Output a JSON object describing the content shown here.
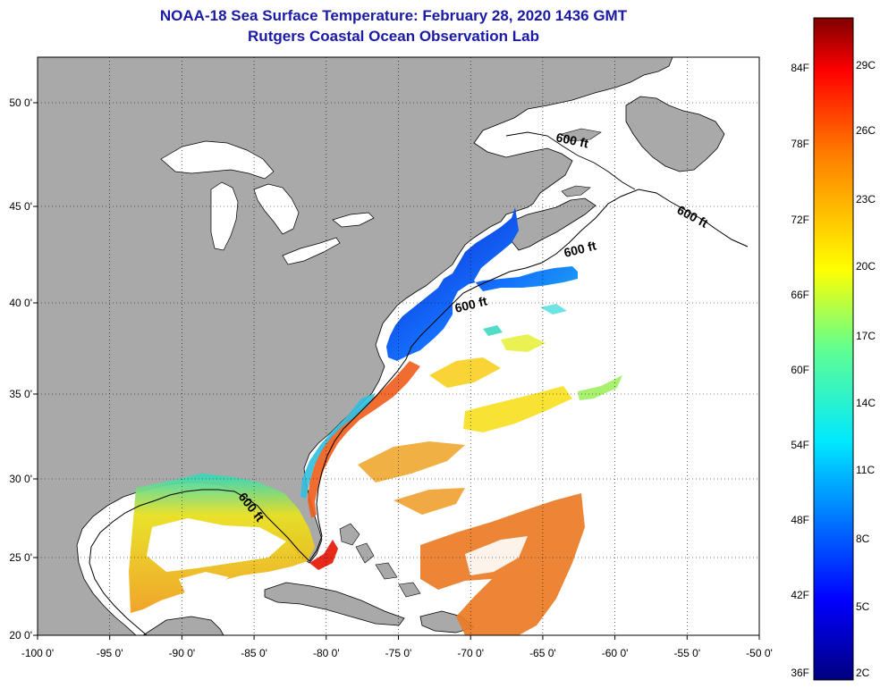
{
  "title": {
    "line1": "NOAA-18 Sea Surface Temperature:  February 28, 2020 1436 GMT",
    "line2": "Rutgers Coastal Ocean Observation Lab"
  },
  "axes": {
    "lon_labels": [
      "-100 0'",
      "-95 0'",
      "-90 0'",
      "-85 0'",
      "-80 0'",
      "-75 0'",
      "-70 0'",
      "-65 0'",
      "-60 0'",
      "-55 0'",
      "-50 0'"
    ],
    "lat_labels": [
      "50 0'",
      "45 0'",
      "40 0'",
      "35 0'",
      "30 0'",
      "25 0'",
      "20 0'"
    ]
  },
  "contour_label": "600 ft",
  "colorbar": {
    "fahrenheit": [
      "84F",
      "78F",
      "72F",
      "66F",
      "60F",
      "54F",
      "48F",
      "42F",
      "36F"
    ],
    "celsius": [
      "29C",
      "26C",
      "23C",
      "20C",
      "17C",
      "14C",
      "11C",
      "8C",
      "5C",
      "2C"
    ]
  },
  "colors": {
    "land": "#a9a9a9",
    "title": "#1a1aa6",
    "cold": "#0a20c8",
    "warm": "#e8781e"
  }
}
